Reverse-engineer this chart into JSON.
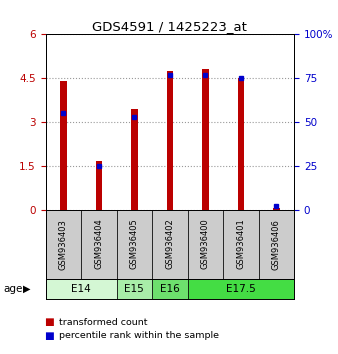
{
  "title": "GDS4591 / 1425223_at",
  "samples": [
    "GSM936403",
    "GSM936404",
    "GSM936405",
    "GSM936402",
    "GSM936400",
    "GSM936401",
    "GSM936406"
  ],
  "transformed_count": [
    4.4,
    1.65,
    3.45,
    4.75,
    4.8,
    4.5,
    0.05
  ],
  "percentile_rank": [
    55,
    25,
    53,
    77,
    77,
    75,
    2
  ],
  "age_groups": [
    {
      "label": "E14",
      "start": 0,
      "end": 2,
      "color": "#d4f7d4"
    },
    {
      "label": "E15",
      "start": 2,
      "end": 3,
      "color": "#a8eda8"
    },
    {
      "label": "E16",
      "start": 3,
      "end": 4,
      "color": "#6de06d"
    },
    {
      "label": "E17.5",
      "start": 4,
      "end": 7,
      "color": "#44dd44"
    }
  ],
  "ylim_left": [
    0,
    6
  ],
  "ylim_right": [
    0,
    100
  ],
  "yticks_left": [
    0,
    1.5,
    3.0,
    4.5,
    6.0
  ],
  "ytick_labels_left": [
    "0",
    "1.5",
    "3",
    "4.5",
    "6"
  ],
  "yticks_right": [
    0,
    25,
    50,
    75,
    100
  ],
  "ytick_labels_right": [
    "0",
    "25",
    "50",
    "75",
    "100%"
  ],
  "bar_color_red": "#bb0000",
  "bar_color_blue": "#0000cc",
  "grid_color": "#999999",
  "bg_color": "#ffffff",
  "sample_box_color": "#cccccc",
  "legend_red": "transformed count",
  "legend_blue": "percentile rank within the sample",
  "age_label": "age"
}
